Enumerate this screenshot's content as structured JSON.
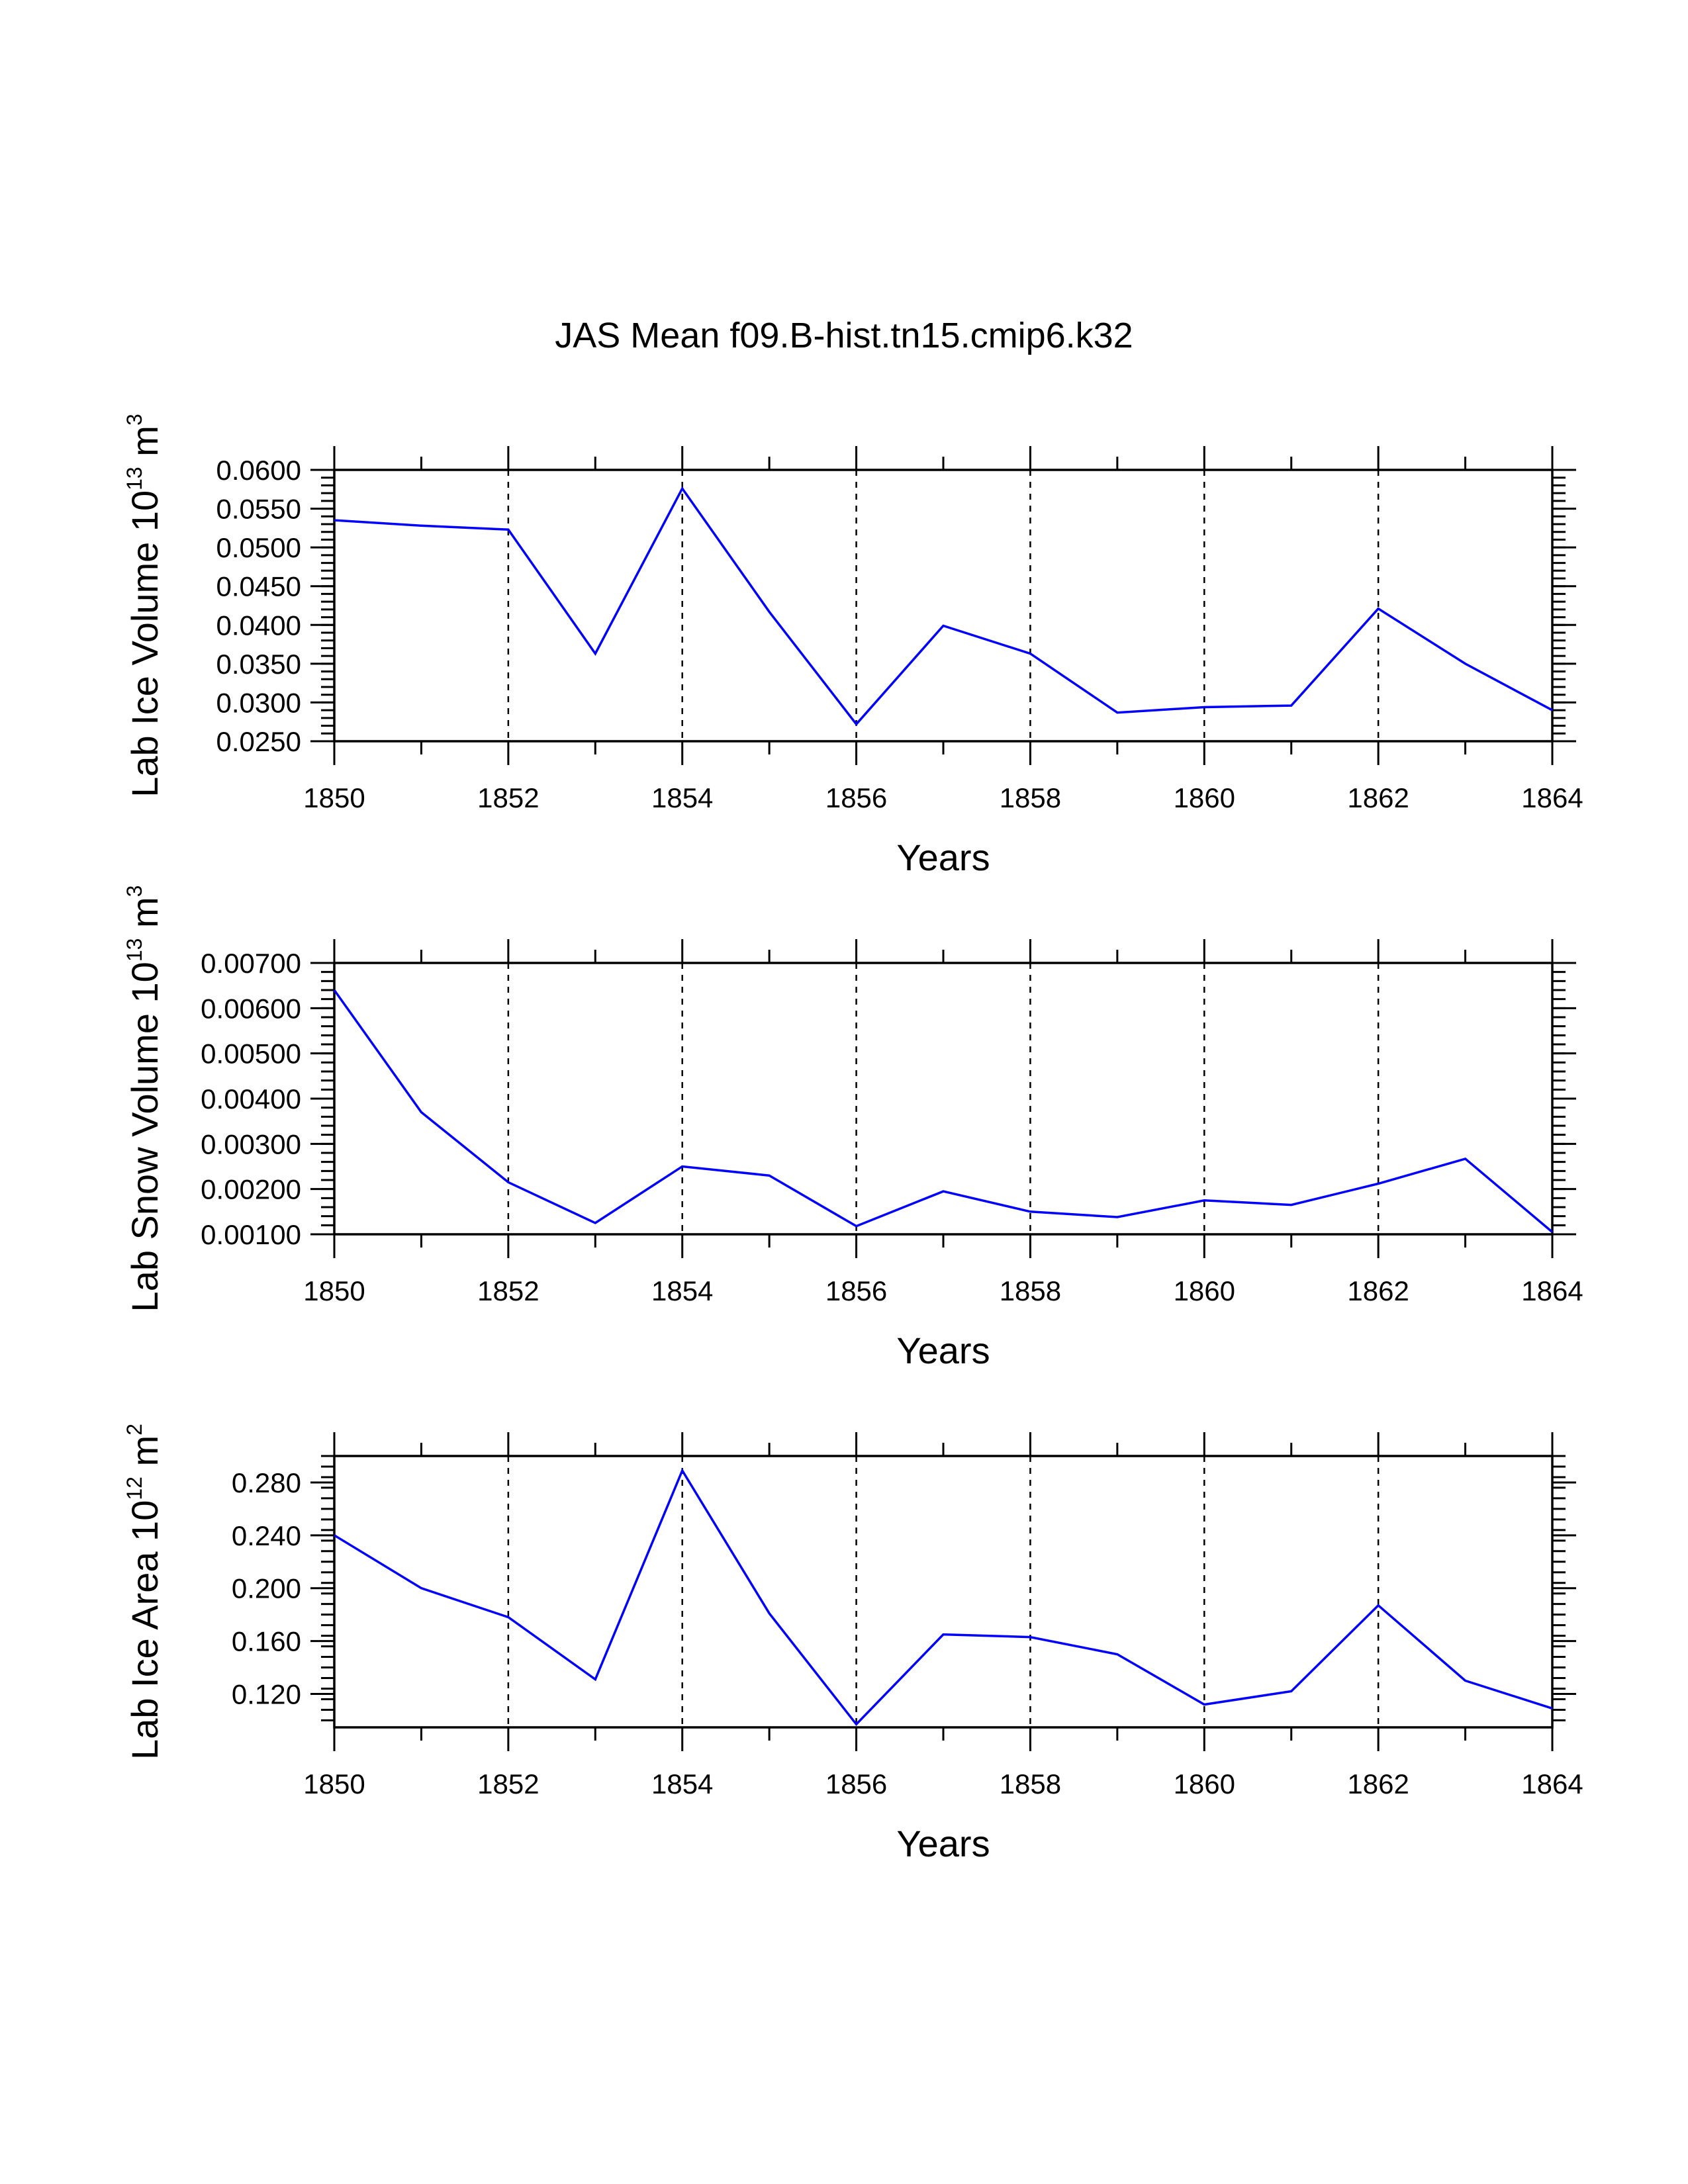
{
  "title": "JAS Mean f09.B-hist.tn15.cmip6.k32",
  "colors": {
    "line": "#0000ff",
    "axis": "#000000",
    "grid": "#000000"
  },
  "chart_data": [
    {
      "type": "line",
      "title": "JAS Mean f09.B-hist.tn15.cmip6.k32",
      "xlabel": "Years",
      "ylabel": {
        "prefix": "Lab Ice Volume 10",
        "exp": "13",
        "unit": " m",
        "unit_exp": "3"
      },
      "x": [
        1850,
        1851,
        1852,
        1853,
        1854,
        1855,
        1856,
        1857,
        1858,
        1859,
        1860,
        1861,
        1862,
        1863,
        1864
      ],
      "series": [
        {
          "name": "Lab Ice Volume",
          "values": [
            0.0535,
            0.0528,
            0.0523,
            0.0363,
            0.0576,
            0.0417,
            0.0272,
            0.0399,
            0.0363,
            0.0287,
            0.0294,
            0.0296,
            0.0421,
            0.035,
            0.029
          ]
        }
      ],
      "xlim": [
        1850,
        1864
      ],
      "ylim": [
        0.025,
        0.06
      ],
      "xticks": [
        "1850",
        "1852",
        "1854",
        "1856",
        "1858",
        "1860",
        "1862",
        "1864"
      ],
      "yticks": [
        "0.0250",
        "0.0300",
        "0.0350",
        "0.0400",
        "0.0450",
        "0.0500",
        "0.0550",
        "0.0600"
      ],
      "ytick_values": [
        0.025,
        0.03,
        0.035,
        0.04,
        0.045,
        0.05,
        0.055,
        0.06
      ],
      "ytop": 0.06,
      "yminor_step": 0.001,
      "grid": "dashed vertical lines at even years"
    },
    {
      "type": "line",
      "xlabel": "Years",
      "ylabel": {
        "prefix": "Lab Snow Volume 10",
        "exp": "13",
        "unit": " m",
        "unit_exp": "3"
      },
      "x": [
        1850,
        1851,
        1852,
        1853,
        1854,
        1855,
        1856,
        1857,
        1858,
        1859,
        1860,
        1861,
        1862,
        1863,
        1864
      ],
      "series": [
        {
          "name": "Lab Snow Volume",
          "values": [
            0.0064,
            0.0037,
            0.00215,
            0.00125,
            0.0025,
            0.0023,
            0.00118,
            0.00195,
            0.0015,
            0.00138,
            0.00175,
            0.00165,
            0.00212,
            0.00267,
            0.00105
          ]
        }
      ],
      "xlim": [
        1850,
        1864
      ],
      "ylim": [
        0.001,
        0.007
      ],
      "xticks": [
        "1850",
        "1852",
        "1854",
        "1856",
        "1858",
        "1860",
        "1862",
        "1864"
      ],
      "yticks": [
        "0.00100",
        "0.00200",
        "0.00300",
        "0.00400",
        "0.00500",
        "0.00600",
        "0.00700"
      ],
      "ytick_values": [
        0.001,
        0.002,
        0.003,
        0.004,
        0.005,
        0.006,
        0.007
      ],
      "ytop": 0.007,
      "yminor_step": 0.0002,
      "grid": "dashed vertical lines at even years"
    },
    {
      "type": "line",
      "xlabel": "Years",
      "ylabel": {
        "prefix": "Lab Ice Area 10",
        "exp": "12",
        "unit": " m",
        "unit_exp": "2"
      },
      "x": [
        1850,
        1851,
        1852,
        1853,
        1854,
        1855,
        1856,
        1857,
        1858,
        1859,
        1860,
        1861,
        1862,
        1863,
        1864
      ],
      "series": [
        {
          "name": "Lab Ice Area",
          "values": [
            0.24,
            0.2,
            0.178,
            0.131,
            0.289,
            0.181,
            0.097,
            0.165,
            0.163,
            0.15,
            0.112,
            0.122,
            0.187,
            0.13,
            0.109
          ]
        }
      ],
      "xlim": [
        1850,
        1864
      ],
      "ylim": [
        0.0947,
        0.3
      ],
      "xticks": [
        "1850",
        "1852",
        "1854",
        "1856",
        "1858",
        "1860",
        "1862",
        "1864"
      ],
      "yticks": [
        "0.120",
        "0.160",
        "0.200",
        "0.240",
        "0.280"
      ],
      "ytick_values": [
        0.12,
        0.16,
        0.2,
        0.24,
        0.28
      ],
      "ytop": 0.3,
      "yminor_step": 0.008,
      "grid": "dashed vertical lines at even years"
    }
  ]
}
